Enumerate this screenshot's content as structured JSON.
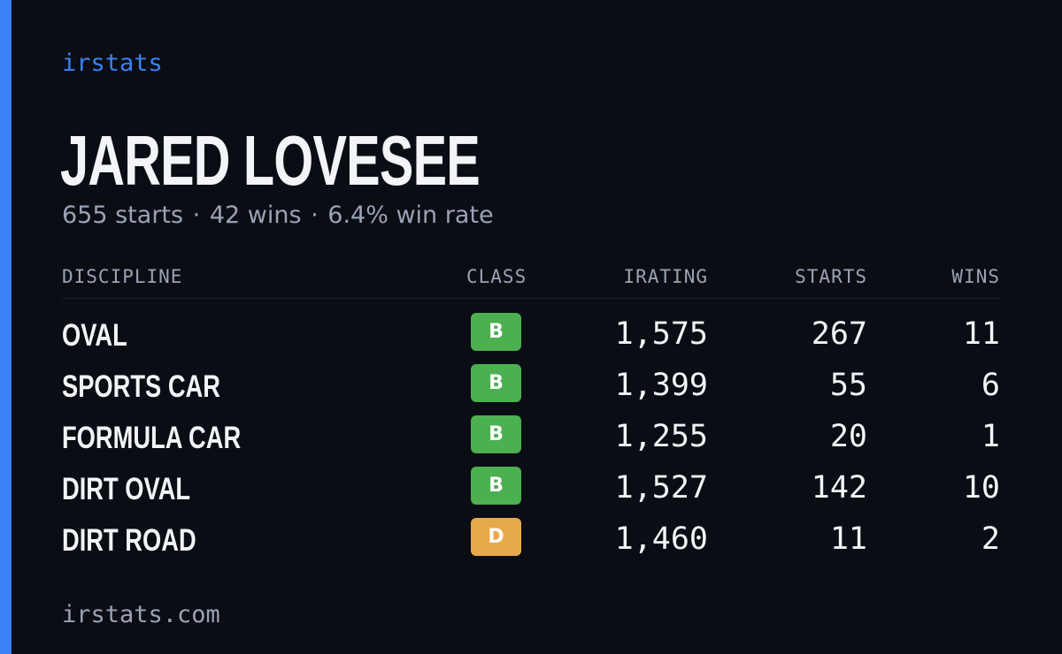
{
  "brand": "irstats",
  "driver": {
    "name": "JARED LOVESEE",
    "starts_text": "655 starts",
    "wins_text": "42 wins",
    "winrate_text": "6.4% win rate"
  },
  "table": {
    "headers": {
      "discipline": "DISCIPLINE",
      "class": "CLASS",
      "irating": "IRATING",
      "starts": "STARTS",
      "wins": "WINS"
    },
    "rows": [
      {
        "discipline": "OVAL",
        "class": "B",
        "class_color": "#4caf50",
        "irating": "1,575",
        "starts": "267",
        "wins": "11"
      },
      {
        "discipline": "SPORTS CAR",
        "class": "B",
        "class_color": "#4caf50",
        "irating": "1,399",
        "starts": "55",
        "wins": "6"
      },
      {
        "discipline": "FORMULA CAR",
        "class": "B",
        "class_color": "#4caf50",
        "irating": "1,255",
        "starts": "20",
        "wins": "1"
      },
      {
        "discipline": "DIRT OVAL",
        "class": "B",
        "class_color": "#4caf50",
        "irating": "1,527",
        "starts": "142",
        "wins": "10"
      },
      {
        "discipline": "DIRT ROAD",
        "class": "D",
        "class_color": "#e8a94a",
        "irating": "1,460",
        "starts": "11",
        "wins": "2"
      }
    ]
  },
  "footer": "irstats.com",
  "colors": {
    "background": "#0a0d14",
    "accent": "#3b82f6",
    "text": "#f3f4f8",
    "muted": "#9aa3b3",
    "class_b": "#4caf50",
    "class_d": "#e8a94a"
  }
}
